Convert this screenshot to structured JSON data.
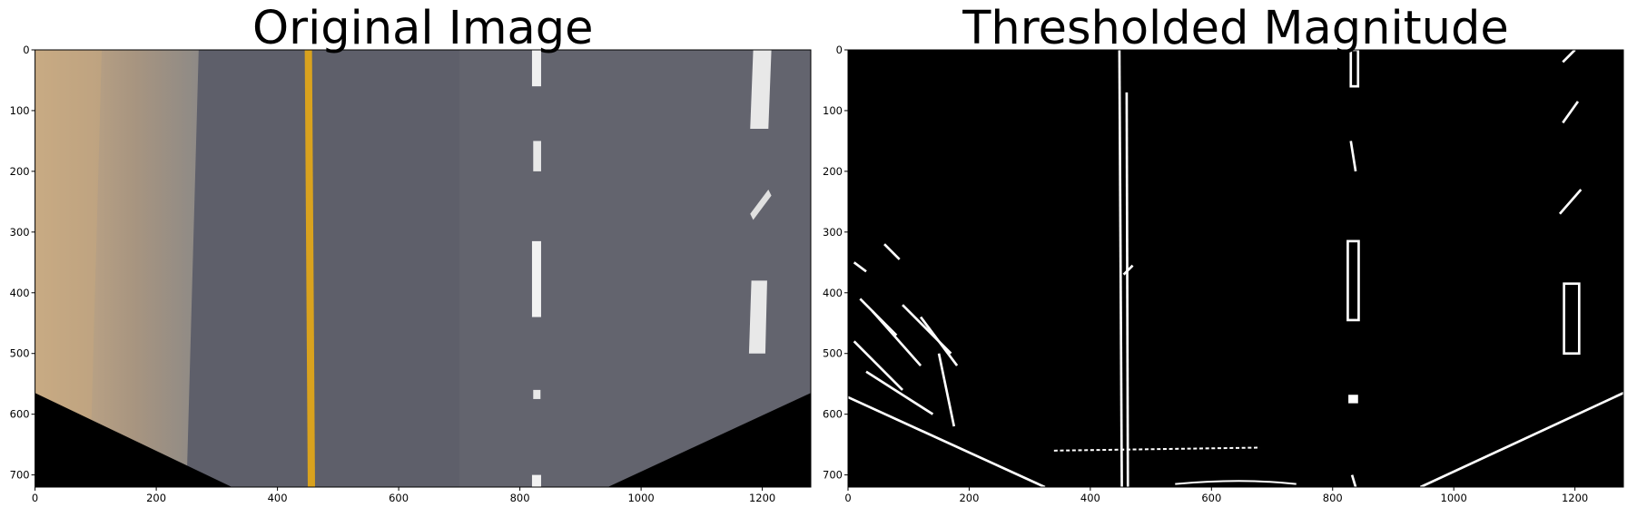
{
  "chart_data": [
    {
      "type": "image",
      "title": "Original Image",
      "xlim": [
        0,
        1280
      ],
      "ylim": [
        720,
        0
      ],
      "xticks": [
        0,
        200,
        400,
        600,
        800,
        1000,
        1200
      ],
      "yticks": [
        0,
        100,
        200,
        300,
        400,
        500,
        600,
        700
      ]
    },
    {
      "type": "image",
      "title": "Thresholded Magnitude",
      "xlim": [
        0,
        1280
      ],
      "ylim": [
        720,
        0
      ],
      "xticks": [
        0,
        200,
        400,
        600,
        800,
        1000,
        1200
      ],
      "yticks": [
        0,
        100,
        200,
        300,
        400,
        500,
        600,
        700
      ]
    }
  ]
}
